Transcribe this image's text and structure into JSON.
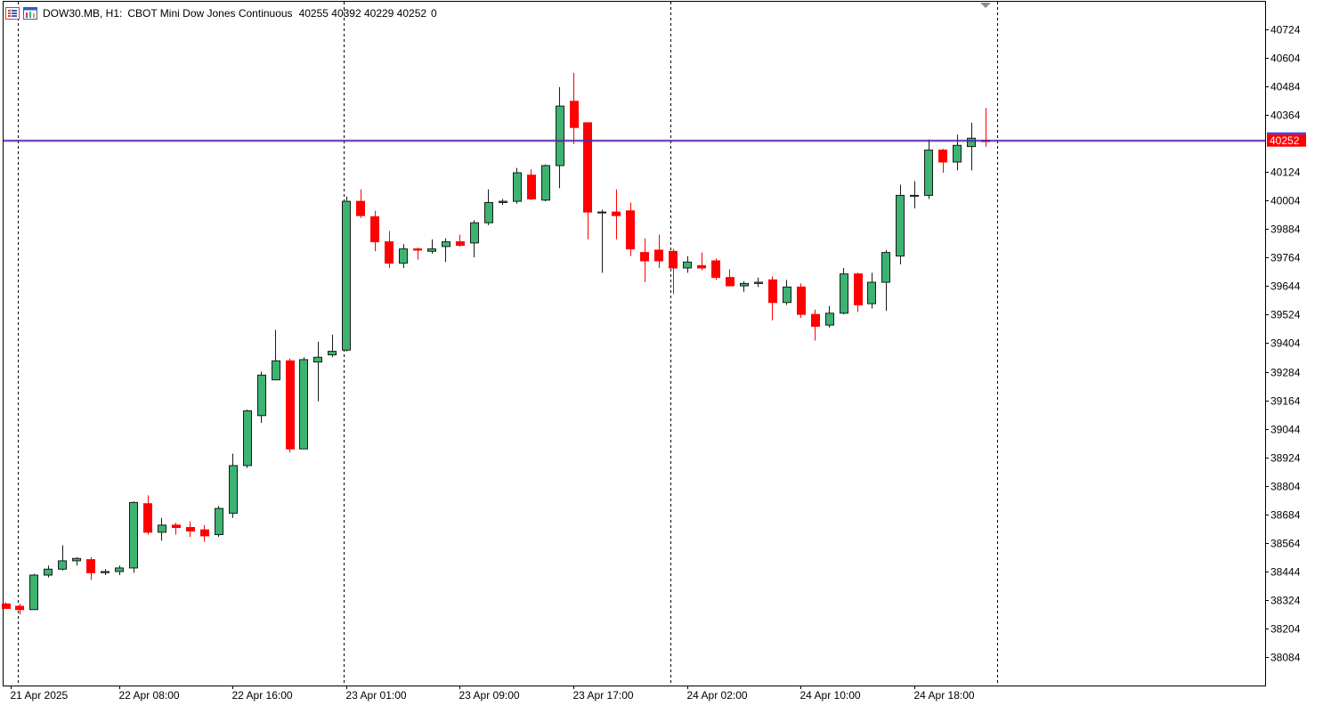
{
  "header": {
    "symbol": "DOW30.MB, H1:",
    "description": "CBOT Mini Dow Jones Continuous",
    "ohlc": "40255 40392 40229 40252",
    "volume": "0"
  },
  "colors": {
    "bull": "#3cb371",
    "bear": "#ff0000",
    "bid_line": "#1f3fff",
    "ask_line": "#c00000",
    "grid_vertical": "#000000",
    "price_label_bg": "#ff0000"
  },
  "icons": [
    "menu-icon",
    "chart-window-icon",
    "scroll-marker-icon"
  ],
  "chart_data": {
    "type": "candlestick",
    "timeframe": "H1",
    "y_ticks": [
      40724,
      40604,
      40484,
      40364,
      40124,
      40004,
      39884,
      39764,
      39644,
      39524,
      39404,
      39284,
      39164,
      39044,
      38924,
      38804,
      38684,
      38564,
      38444,
      38324,
      38204,
      38084
    ],
    "ylim": [
      37960,
      40850
    ],
    "x_labels": [
      {
        "index": 0.4,
        "label": "21 Apr 2025"
      },
      {
        "index": 8,
        "label": "22 Apr 08:00"
      },
      {
        "index": 16,
        "label": "22 Apr 16:00"
      },
      {
        "index": 24,
        "label": "23 Apr 01:00"
      },
      {
        "index": 32,
        "label": "23 Apr 09:00"
      },
      {
        "index": 40,
        "label": "23 Apr 17:00"
      },
      {
        "index": 48,
        "label": "24 Apr 02:00"
      },
      {
        "index": 56,
        "label": "24 Apr 10:00"
      },
      {
        "index": 64,
        "label": "24 Apr 18:00"
      }
    ],
    "day_separators": [
      0.85,
      23.85,
      46.85,
      69.85
    ],
    "current_price": 40252,
    "ask_price": 40257,
    "candles": [
      [
        38309,
        38315,
        38290,
        38290
      ],
      [
        38299,
        38310,
        38265,
        38285
      ],
      [
        38285,
        38435,
        38285,
        38430
      ],
      [
        38430,
        38470,
        38420,
        38455
      ],
      [
        38455,
        38555,
        38450,
        38490
      ],
      [
        38490,
        38505,
        38470,
        38500
      ],
      [
        38495,
        38505,
        38410,
        38440
      ],
      [
        38440,
        38455,
        38430,
        38445
      ],
      [
        38445,
        38470,
        38430,
        38460
      ],
      [
        38460,
        38740,
        38440,
        38735
      ],
      [
        38730,
        38765,
        38600,
        38610
      ],
      [
        38610,
        38670,
        38575,
        38640
      ],
      [
        38640,
        38650,
        38600,
        38630
      ],
      [
        38630,
        38655,
        38590,
        38615
      ],
      [
        38620,
        38640,
        38570,
        38595
      ],
      [
        38600,
        38720,
        38590,
        38710
      ],
      [
        38690,
        38940,
        38670,
        38890
      ],
      [
        38890,
        39125,
        38880,
        39120
      ],
      [
        39100,
        39285,
        39070,
        39270
      ],
      [
        39250,
        39460,
        39250,
        39330
      ],
      [
        39330,
        39340,
        38945,
        38960
      ],
      [
        38960,
        39345,
        38960,
        39335
      ],
      [
        39325,
        39410,
        39160,
        39345
      ],
      [
        39355,
        39440,
        39345,
        39370
      ],
      [
        39375,
        40020,
        39370,
        40000
      ],
      [
        40000,
        40050,
        39930,
        39940
      ],
      [
        39935,
        39960,
        39790,
        39830
      ],
      [
        39830,
        39875,
        39720,
        39740
      ],
      [
        39740,
        39820,
        39720,
        39800
      ],
      [
        39800,
        39805,
        39755,
        39795
      ],
      [
        39790,
        39840,
        39780,
        39800
      ],
      [
        39810,
        39845,
        39745,
        39830
      ],
      [
        39830,
        39860,
        39810,
        39815
      ],
      [
        39825,
        39920,
        39765,
        39910
      ],
      [
        39910,
        40050,
        39900,
        39995
      ],
      [
        39995,
        40010,
        39985,
        40000
      ],
      [
        40000,
        40140,
        39990,
        40120
      ],
      [
        40110,
        40135,
        40005,
        40010
      ],
      [
        40005,
        40155,
        40000,
        40150
      ],
      [
        40150,
        40480,
        40055,
        40400
      ],
      [
        40420,
        40540,
        40240,
        40310
      ],
      [
        40330,
        40320,
        39840,
        39955
      ],
      [
        39955,
        39965,
        39700,
        39955
      ],
      [
        39955,
        40050,
        39840,
        39940
      ],
      [
        39960,
        39995,
        39770,
        39800
      ],
      [
        39785,
        39845,
        39660,
        39750
      ],
      [
        39795,
        39860,
        39720,
        39750
      ],
      [
        39790,
        39800,
        39610,
        39720
      ],
      [
        39720,
        39770,
        39700,
        39745
      ],
      [
        39730,
        39785,
        39710,
        39720
      ],
      [
        39750,
        39760,
        39670,
        39680
      ],
      [
        39680,
        39715,
        39650,
        39645
      ],
      [
        39645,
        39665,
        39620,
        39655
      ],
      [
        39655,
        39680,
        39640,
        39660
      ],
      [
        39670,
        39685,
        39500,
        39575
      ],
      [
        39575,
        39670,
        39565,
        39640
      ],
      [
        39640,
        39655,
        39510,
        39525
      ],
      [
        39525,
        39545,
        39415,
        39475
      ],
      [
        39480,
        39560,
        39470,
        39530
      ],
      [
        39530,
        39720,
        39525,
        39695
      ],
      [
        39695,
        39700,
        39535,
        39565
      ],
      [
        39570,
        39700,
        39550,
        39660
      ],
      [
        39660,
        39795,
        39540,
        39785
      ],
      [
        39770,
        40070,
        39735,
        40025
      ],
      [
        40025,
        40085,
        39970,
        40025
      ],
      [
        40025,
        40260,
        40010,
        40215
      ],
      [
        40215,
        40220,
        40120,
        40165
      ],
      [
        40165,
        40280,
        40130,
        40235
      ],
      [
        40230,
        40330,
        40130,
        40265
      ],
      [
        40255,
        40392,
        40229,
        40252
      ]
    ]
  }
}
